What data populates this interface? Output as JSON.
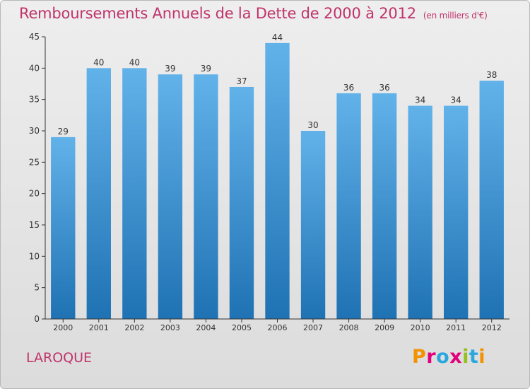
{
  "title": "Remboursements Annuels de la Dette de 2000 à 2012",
  "subtitle": "(en milliers d'€)",
  "commune": "LAROQUE",
  "brand": {
    "text": "Proxiti",
    "colors": [
      "#f39200",
      "#e2007a",
      "#2aa7df",
      "#e2007a",
      "#95c11f",
      "#2aa7df",
      "#f39200"
    ]
  },
  "colors": {
    "bar_light": "#62b2ea",
    "bar_dark": "#1f72b3",
    "title": "#c0336a",
    "axis": "#333333"
  },
  "chart_data": {
    "type": "bar",
    "title": "Remboursements Annuels de la Dette de 2000 à 2012",
    "subtitle": "(en milliers d'€)",
    "categories": [
      "2000",
      "2001",
      "2002",
      "2003",
      "2004",
      "2005",
      "2006",
      "2007",
      "2008",
      "2009",
      "2010",
      "2011",
      "2012"
    ],
    "values": [
      29,
      40,
      40,
      39,
      39,
      37,
      44,
      30,
      36,
      36,
      34,
      34,
      38
    ],
    "ylim": [
      0,
      45
    ],
    "yticks": [
      0,
      5,
      10,
      15,
      20,
      25,
      30,
      35,
      40,
      45
    ],
    "grid": false,
    "data_labels": true
  }
}
